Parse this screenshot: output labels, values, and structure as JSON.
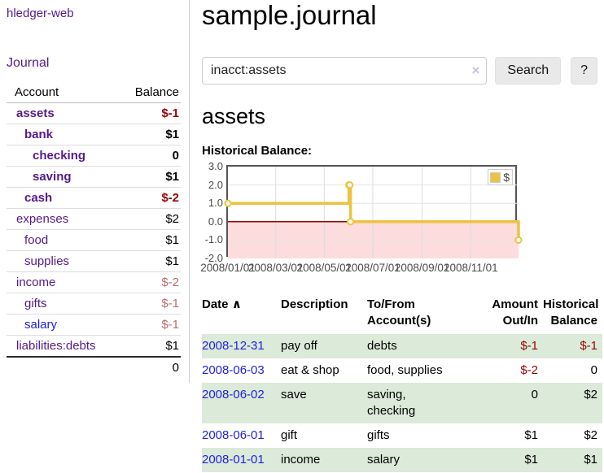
{
  "app": {
    "brand": "hledger-web",
    "nav_journal": "Journal"
  },
  "colors": {
    "link_purple": "#551a8b",
    "link_blue": "#1a1ae6",
    "negative_red": "#990000",
    "negative_soft": "#bb6b6b",
    "row_stripe_green": "#dcead9",
    "chart_line_yellow": "#edc240",
    "chart_negative_fill": "#fcdcdc",
    "chart_zero_line": "#990000"
  },
  "sidebar": {
    "account_header": "Account",
    "balance_header": "Balance",
    "accounts": [
      {
        "name": "assets",
        "balance": "$-1"
      },
      {
        "name": "bank",
        "balance": "$1"
      },
      {
        "name": "checking",
        "balance": "0"
      },
      {
        "name": "saving",
        "balance": "$1"
      },
      {
        "name": "cash",
        "balance": "$-2"
      },
      {
        "name": "expenses",
        "balance": "$2"
      },
      {
        "name": "food",
        "balance": "$1"
      },
      {
        "name": "supplies",
        "balance": "$1"
      },
      {
        "name": "income",
        "balance": "$-2"
      },
      {
        "name": "gifts",
        "balance": "$-1"
      },
      {
        "name": "salary",
        "balance": "$-1"
      },
      {
        "name": "liabilities:debts",
        "balance": "$1"
      }
    ],
    "total": "0"
  },
  "header": {
    "title": "sample.journal"
  },
  "search": {
    "value": "inacct:assets",
    "clear_icon": "×",
    "button": "Search",
    "help": "?"
  },
  "account_page": {
    "heading": "assets"
  },
  "chart_data": {
    "type": "line",
    "title": "Historical Balance:",
    "series": [
      {
        "name": "$",
        "color": "#edc240",
        "step": true,
        "points": [
          {
            "date": "2008-01-01",
            "value": 1
          },
          {
            "date": "2008-06-01",
            "value": 2
          },
          {
            "date": "2008-06-02",
            "value": 2
          },
          {
            "date": "2008-06-03",
            "value": 0
          },
          {
            "date": "2008-12-31",
            "value": -1
          }
        ]
      }
    ],
    "x_range": [
      "2008-01-01",
      "2008-12-31"
    ],
    "x_ticks": [
      {
        "date": "2008-01-01",
        "label": "2008/01/01"
      },
      {
        "date": "2008-03-01",
        "label": "2008/03/01"
      },
      {
        "date": "2008-05-01",
        "label": "2008/05/01"
      },
      {
        "date": "2008-07-01",
        "label": "2008/07/01"
      },
      {
        "date": "2008-09-01",
        "label": "2008/09/01"
      },
      {
        "date": "2008-11-01",
        "label": "2008/11/01"
      }
    ],
    "y_ticks": [
      3.0,
      2.0,
      1.0,
      0.0,
      -1.0,
      -2.0
    ],
    "ylim": [
      -2,
      3
    ],
    "grid": true,
    "legend_position": "top-right",
    "zero_line_color": "#990000",
    "negative_fill": "#fcdcdc"
  },
  "register": {
    "headers": {
      "date": "Date",
      "sort_icon": "∧",
      "description": "Description",
      "accounts_line1": "To/From",
      "accounts_line2": "Account(s)",
      "amount_line1": "Amount",
      "amount_line2": "Out/In",
      "balance_line1": "Historical",
      "balance_line2": "Balance"
    },
    "rows": [
      {
        "date": "2008-12-31",
        "description": "pay off",
        "accounts": "debts",
        "amount": "$-1",
        "balance": "$-1"
      },
      {
        "date": "2008-06-03",
        "description": "eat & shop",
        "accounts": "food, supplies",
        "amount": "$-2",
        "balance": "0"
      },
      {
        "date": "2008-06-02",
        "description": "save",
        "accounts": "saving, checking",
        "amount": "0",
        "balance": "$2"
      },
      {
        "date": "2008-06-01",
        "description": "gift",
        "accounts": "gifts",
        "amount": "$1",
        "balance": "$2"
      },
      {
        "date": "2008-01-01",
        "description": "income",
        "accounts": "salary",
        "amount": "$1",
        "balance": "$1"
      }
    ]
  }
}
